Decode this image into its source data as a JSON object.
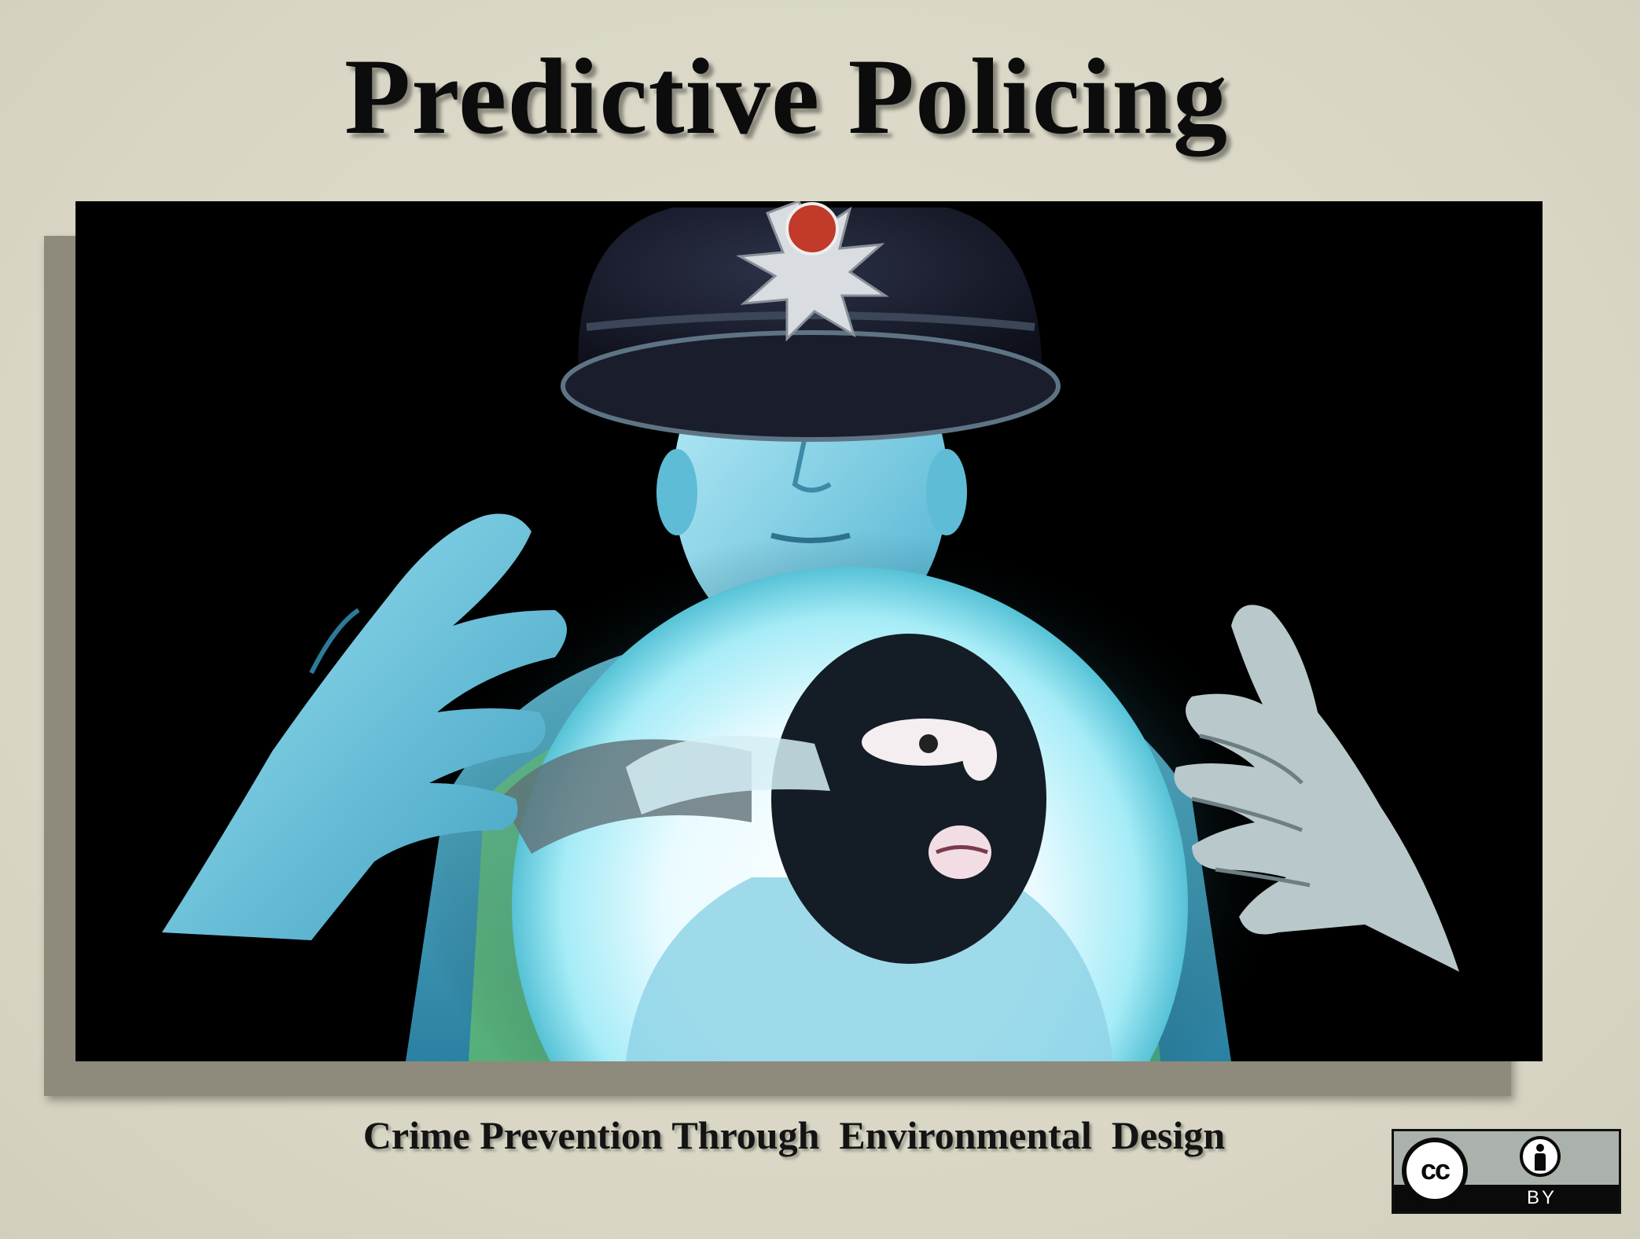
{
  "slide": {
    "title": "Predictive Policing",
    "subtitle": "Crime Prevention Through  Environmental  Design"
  },
  "image": {
    "description_icon": "police-officer-crystal-ball-image",
    "background_color": "#000000",
    "glow_color": "#9fe8f5"
  },
  "license_badge": {
    "cc_label": "cc",
    "by_label": "BY",
    "icon": "creative-commons-by-icon"
  },
  "colors": {
    "slide_background": "#dcd9c9",
    "title_text": "#0c0c0c",
    "shadow_panel": "#8e8b7c"
  }
}
